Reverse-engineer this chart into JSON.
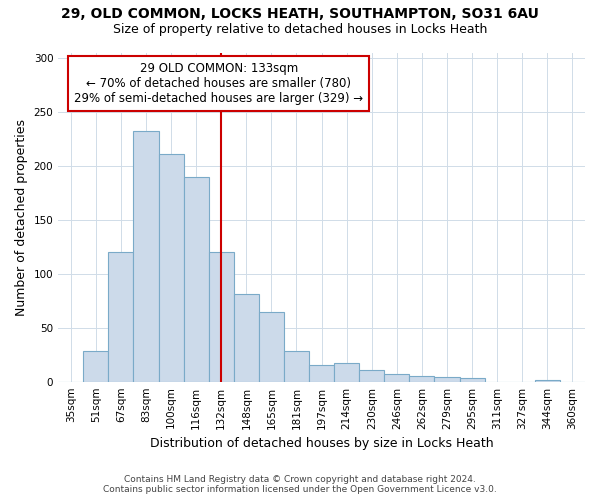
{
  "title1": "29, OLD COMMON, LOCKS HEATH, SOUTHAMPTON, SO31 6AU",
  "title2": "Size of property relative to detached houses in Locks Heath",
  "xlabel": "Distribution of detached houses by size in Locks Heath",
  "ylabel": "Number of detached properties",
  "categories": [
    "35sqm",
    "51sqm",
    "67sqm",
    "83sqm",
    "100sqm",
    "116sqm",
    "132sqm",
    "148sqm",
    "165sqm",
    "181sqm",
    "197sqm",
    "214sqm",
    "230sqm",
    "246sqm",
    "262sqm",
    "279sqm",
    "295sqm",
    "311sqm",
    "327sqm",
    "344sqm",
    "360sqm"
  ],
  "values": [
    0,
    28,
    120,
    232,
    211,
    190,
    120,
    81,
    65,
    28,
    15,
    17,
    11,
    7,
    5,
    4,
    3,
    0,
    0,
    2,
    0
  ],
  "bar_color": "#ccdaea",
  "bar_edge_color": "#7aaac8",
  "vline_x_index": 6,
  "vline_color": "#cc0000",
  "annotation_title": "29 OLD COMMON: 133sqm",
  "annotation_line2": "← 70% of detached houses are smaller (780)",
  "annotation_line3": "29% of semi-detached houses are larger (329) →",
  "box_edge_color": "#cc0000",
  "ylim": [
    0,
    305
  ],
  "yticks": [
    0,
    50,
    100,
    150,
    200,
    250,
    300
  ],
  "footer1": "Contains HM Land Registry data © Crown copyright and database right 2024.",
  "footer2": "Contains public sector information licensed under the Open Government Licence v3.0.",
  "bg_color": "#ffffff",
  "plot_bg_color": "#ffffff",
  "grid_color": "#d0dce8"
}
